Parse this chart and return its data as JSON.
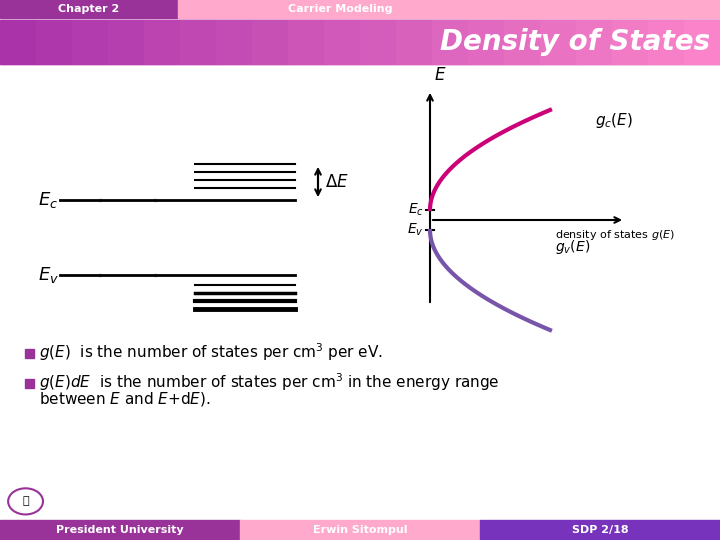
{
  "bg_color": "#ffffff",
  "header_chapter_bg": "#993399",
  "header_carrier_bg": "#ffaacc",
  "header_chapter_text": "Chapter 2",
  "header_carrier_text": "Carrier Modeling",
  "title_text": "Density of States",
  "title_color": "#ffffff",
  "title_bg_color": "#aa33aa",
  "footer_left_bg": "#993399",
  "footer_mid_bg": "#ffaacc",
  "footer_right_bg": "#7733bb",
  "footer_left_text": "President University",
  "footer_mid_text": "Erwin Sitompul",
  "footer_right_text": "SDP 2/18",
  "bullet_color": "#993399",
  "gc_color": "#cc0077",
  "gv_color": "#7755aa"
}
